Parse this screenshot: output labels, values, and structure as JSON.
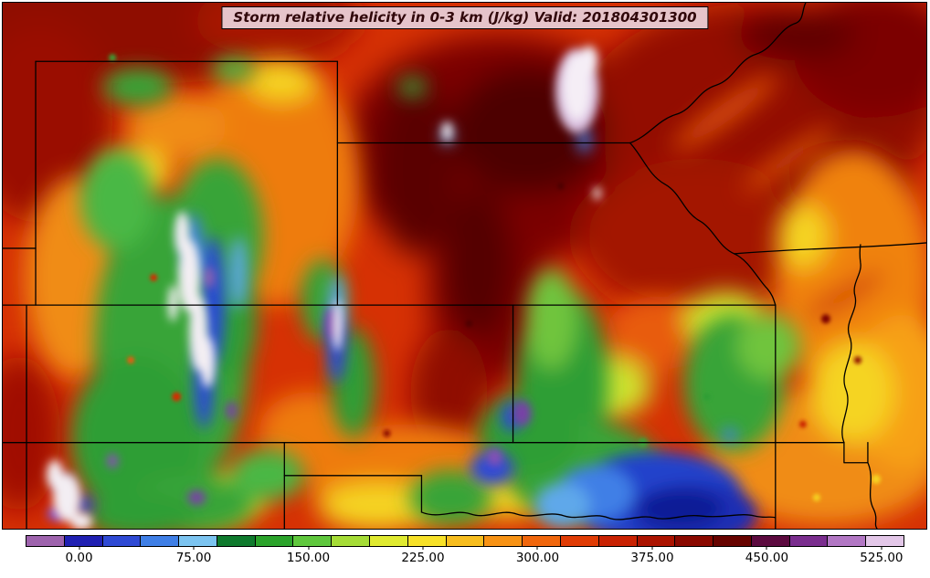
{
  "title_bar": {
    "text": "Storm relative helicity in 0-3 km (J/kg) Valid: 201804301300"
  },
  "chart_data": {
    "type": "heatmap",
    "title": "Storm relative helicity in 0-3 km (J/kg)",
    "valid": "201804301300",
    "units": "J/kg",
    "region": "Central United States (Wyoming, Nebraska, Utah, Colorado, Kansas, Missouri, Iowa, New Mexico, Texas panhandle, Oklahoma, Arkansas)",
    "colorbar": {
      "orientation": "horizontal",
      "segments": 23,
      "min": -35,
      "max": 540,
      "interval": 25,
      "tick_values": [
        0,
        75,
        150,
        225,
        300,
        375,
        450,
        525
      ],
      "tick_labels": [
        "0.00",
        "75.00",
        "150.00",
        "225.00",
        "300.00",
        "375.00",
        "450.00",
        "525.00"
      ],
      "colors": [
        "#9e63ad",
        "#2020b2",
        "#2f4ad4",
        "#3f7fe6",
        "#7cc4f0",
        "#0f7a2d",
        "#2ba32b",
        "#5fc73d",
        "#a5dc36",
        "#e0ea30",
        "#f7e128",
        "#f7bd1e",
        "#f79214",
        "#f0660c",
        "#e03c05",
        "#c92202",
        "#ab1300",
        "#8a0900",
        "#670300",
        "#5c0a3f",
        "#7a2d8e",
        "#b277c4",
        "#e3c7e8"
      ]
    },
    "field_summary": [
      {
        "area": "central Nebraska into central Kansas",
        "value": "350-525+ (dark red core), small pale >525 patch in central Nebraska"
      },
      {
        "area": "northern / top of domain (Wyoming, South Dakota)",
        "value": "300-450"
      },
      {
        "area": "Missouri and Iowa (northeast quadrant)",
        "value": "225-375 with orange streaks 250-300"
      },
      {
        "area": "Rocky Mountains of Utah and Colorado",
        "value": "banded 0-150 (blue/green) with narrow 450+ (purple/white) streaks"
      },
      {
        "area": "eastern Colorado into western Kansas",
        "value": "75-150 green corridor"
      },
      {
        "area": "central and southeast Oklahoma",
        "value": "0-75 minimum (blue), isolated <0 purple specks"
      },
      {
        "area": "Arkansas / lower right of domain",
        "value": "150-275 (yellow-orange)"
      }
    ]
  }
}
